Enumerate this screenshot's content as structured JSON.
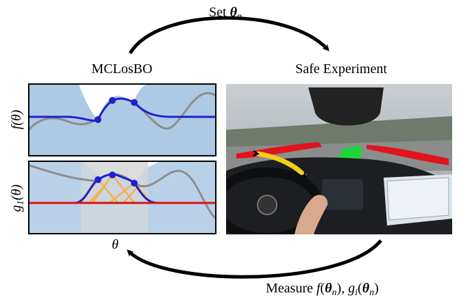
{
  "top_arrow_label": {
    "text": "Set",
    "symbol": "θ",
    "subscript": "n"
  },
  "left_title": "MCLosBO",
  "right_title": "Safe Experiment",
  "plots": [
    {
      "function": "f",
      "argument": "θ"
    },
    {
      "function": "g",
      "subscript": "1",
      "argument": "θ"
    }
  ],
  "x_axis_label": "θ",
  "bottom_arrow_label": {
    "text": "Measure",
    "f": "f",
    "symbol": "θ",
    "subscript": "n",
    "g": "g",
    "g_subscript": "i"
  }
}
